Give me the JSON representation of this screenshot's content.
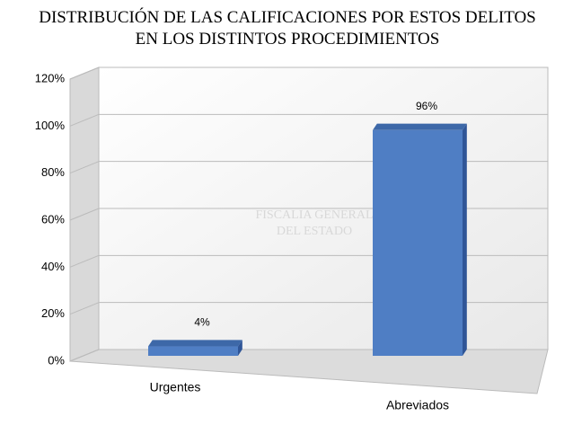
{
  "chart_data": {
    "type": "bar3d",
    "title": "DISTRIBUCIÓN DE LAS CALIFICACIONES POR ESTOS DELITOS EN LOS DISTINTOS PROCEDIMIENTOS",
    "watermark": [
      "FISCALIA GENERAL",
      "DEL ESTADO"
    ],
    "categories": [
      "Urgentes",
      "Abreviados"
    ],
    "values": [
      4,
      96
    ],
    "value_labels": [
      "4%",
      "96%"
    ],
    "color": "#4f7ec4",
    "ylim": [
      0,
      120
    ],
    "yticks": [
      {
        "value": 0,
        "label": "0%"
      },
      {
        "value": 20,
        "label": "20%"
      },
      {
        "value": 40,
        "label": "40%"
      },
      {
        "value": 60,
        "label": "60%"
      },
      {
        "value": 80,
        "label": "80%"
      },
      {
        "value": 100,
        "label": "100%"
      },
      {
        "value": 120,
        "label": "120%"
      }
    ],
    "grid": true
  }
}
